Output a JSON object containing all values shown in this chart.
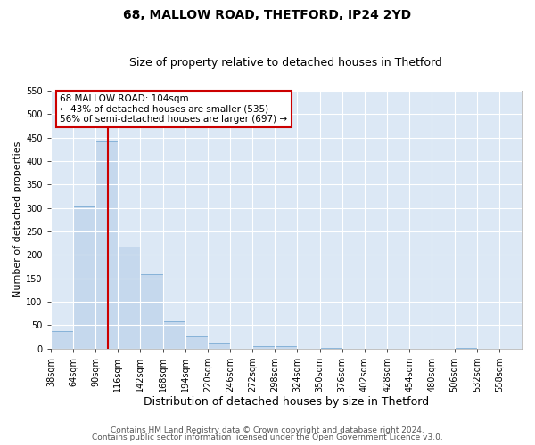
{
  "title": "68, MALLOW ROAD, THETFORD, IP24 2YD",
  "subtitle": "Size of property relative to detached houses in Thetford",
  "xlabel": "Distribution of detached houses by size in Thetford",
  "ylabel": "Number of detached properties",
  "bin_labels": [
    "38sqm",
    "64sqm",
    "90sqm",
    "116sqm",
    "142sqm",
    "168sqm",
    "194sqm",
    "220sqm",
    "246sqm",
    "272sqm",
    "298sqm",
    "324sqm",
    "350sqm",
    "376sqm",
    "402sqm",
    "428sqm",
    "454sqm",
    "480sqm",
    "506sqm",
    "532sqm",
    "558sqm"
  ],
  "bin_edges": [
    38,
    64,
    90,
    116,
    142,
    168,
    194,
    220,
    246,
    272,
    298,
    324,
    350,
    376,
    402,
    428,
    454,
    480,
    506,
    532,
    558,
    584
  ],
  "bar_heights": [
    37,
    303,
    443,
    217,
    158,
    58,
    26,
    12,
    0,
    5,
    5,
    0,
    2,
    0,
    0,
    0,
    0,
    0,
    2,
    0,
    0
  ],
  "bar_color": "#c5d8ed",
  "bar_edge_color": "#7aabd4",
  "vline_x": 104,
  "vline_color": "#cc0000",
  "ylim": [
    0,
    550
  ],
  "yticks": [
    0,
    50,
    100,
    150,
    200,
    250,
    300,
    350,
    400,
    450,
    500,
    550
  ],
  "annotation_title": "68 MALLOW ROAD: 104sqm",
  "annotation_line1": "← 43% of detached houses are smaller (535)",
  "annotation_line2": "56% of semi-detached houses are larger (697) →",
  "annotation_box_color": "#ffffff",
  "annotation_box_edge": "#cc0000",
  "footnote1": "Contains HM Land Registry data © Crown copyright and database right 2024.",
  "footnote2": "Contains public sector information licensed under the Open Government Licence v3.0.",
  "plot_bg_color": "#dce8f5",
  "fig_bg_color": "#ffffff",
  "grid_color": "#ffffff",
  "title_fontsize": 10,
  "subtitle_fontsize": 9,
  "xlabel_fontsize": 9,
  "ylabel_fontsize": 8,
  "tick_fontsize": 7,
  "footnote_fontsize": 6.5
}
